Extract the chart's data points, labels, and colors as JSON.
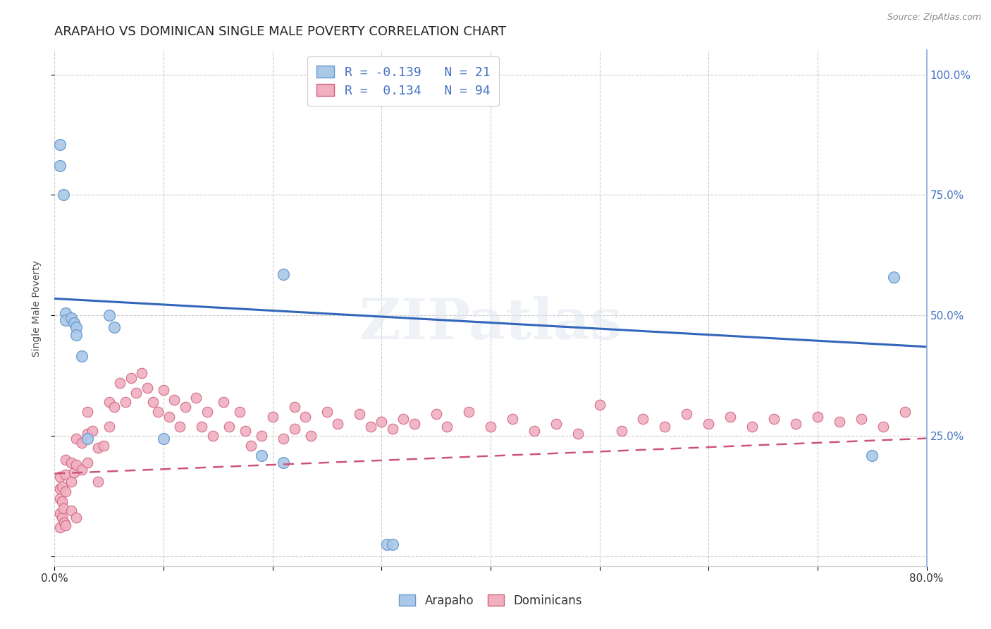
{
  "title": "ARAPAHO VS DOMINICAN SINGLE MALE POVERTY CORRELATION CHART",
  "source": "Source: ZipAtlas.com",
  "ylabel": "Single Male Poverty",
  "xlim": [
    0.0,
    0.8
  ],
  "ylim": [
    -0.02,
    1.05
  ],
  "arapaho_color": "#aac8e8",
  "arapaho_edge_color": "#6699cc",
  "dominican_color": "#f0b0c0",
  "dominican_edge_color": "#d06080",
  "arapaho_line_color": "#3366BB",
  "dominican_line_color": "#CC5577",
  "legend_r_arapaho": "-0.139",
  "legend_n_arapaho": "21",
  "legend_r_dominican": "0.134",
  "legend_n_dominican": "94",
  "watermark": "ZIPatlas",
  "arapaho_x": [
    0.005,
    0.005,
    0.008,
    0.01,
    0.01,
    0.015,
    0.018,
    0.02,
    0.02,
    0.025,
    0.03,
    0.05,
    0.055,
    0.1,
    0.19,
    0.21,
    0.21,
    0.75,
    0.77,
    0.305,
    0.31
  ],
  "arapaho_y": [
    0.855,
    0.81,
    0.75,
    0.505,
    0.49,
    0.495,
    0.485,
    0.475,
    0.46,
    0.415,
    0.245,
    0.5,
    0.475,
    0.245,
    0.21,
    0.195,
    0.585,
    0.21,
    0.58,
    0.025,
    0.025
  ],
  "dominican_x": [
    0.005,
    0.005,
    0.005,
    0.005,
    0.005,
    0.007,
    0.007,
    0.007,
    0.008,
    0.009,
    0.01,
    0.01,
    0.01,
    0.01,
    0.015,
    0.015,
    0.015,
    0.018,
    0.02,
    0.02,
    0.02,
    0.025,
    0.025,
    0.03,
    0.03,
    0.03,
    0.035,
    0.04,
    0.04,
    0.045,
    0.05,
    0.05,
    0.055,
    0.06,
    0.065,
    0.07,
    0.075,
    0.08,
    0.085,
    0.09,
    0.095,
    0.1,
    0.105,
    0.11,
    0.115,
    0.12,
    0.13,
    0.135,
    0.14,
    0.145,
    0.155,
    0.16,
    0.17,
    0.175,
    0.18,
    0.19,
    0.2,
    0.21,
    0.22,
    0.22,
    0.23,
    0.235,
    0.25,
    0.26,
    0.28,
    0.29,
    0.3,
    0.31,
    0.32,
    0.33,
    0.35,
    0.36,
    0.38,
    0.4,
    0.42,
    0.44,
    0.46,
    0.48,
    0.5,
    0.52,
    0.54,
    0.56,
    0.58,
    0.6,
    0.62,
    0.64,
    0.66,
    0.68,
    0.7,
    0.72,
    0.74,
    0.76,
    0.78
  ],
  "dominican_y": [
    0.165,
    0.14,
    0.12,
    0.09,
    0.06,
    0.145,
    0.115,
    0.08,
    0.1,
    0.07,
    0.2,
    0.17,
    0.135,
    0.065,
    0.195,
    0.155,
    0.095,
    0.175,
    0.245,
    0.19,
    0.08,
    0.235,
    0.18,
    0.3,
    0.255,
    0.195,
    0.26,
    0.225,
    0.155,
    0.23,
    0.32,
    0.27,
    0.31,
    0.36,
    0.32,
    0.37,
    0.34,
    0.38,
    0.35,
    0.32,
    0.3,
    0.345,
    0.29,
    0.325,
    0.27,
    0.31,
    0.33,
    0.27,
    0.3,
    0.25,
    0.32,
    0.27,
    0.3,
    0.26,
    0.23,
    0.25,
    0.29,
    0.245,
    0.31,
    0.265,
    0.29,
    0.25,
    0.3,
    0.275,
    0.295,
    0.27,
    0.28,
    0.265,
    0.285,
    0.275,
    0.295,
    0.27,
    0.3,
    0.27,
    0.285,
    0.26,
    0.275,
    0.255,
    0.315,
    0.26,
    0.285,
    0.27,
    0.295,
    0.275,
    0.29,
    0.27,
    0.285,
    0.275,
    0.29,
    0.28,
    0.285,
    0.27,
    0.3
  ],
  "arap_line_x0": 0.0,
  "arap_line_y0": 0.535,
  "arap_line_x1": 0.8,
  "arap_line_y1": 0.435,
  "dom_line_x0": 0.0,
  "dom_line_y0": 0.172,
  "dom_line_x1": 0.8,
  "dom_line_y1": 0.245,
  "bg_color": "#ffffff",
  "grid_color": "#cccccc"
}
